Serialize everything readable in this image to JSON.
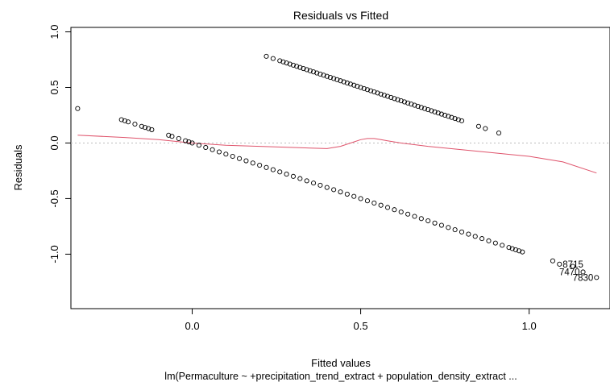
{
  "chart_data": {
    "type": "scatter",
    "title": "Residuals vs Fitted",
    "xlabel": "Fitted values",
    "ylabel": "Residuals",
    "subtitle": "lm(Permaculture ~ +precipitation_trend_extract + population_density_extract ...",
    "xlim": [
      -0.36,
      1.24
    ],
    "ylim": [
      -1.49,
      1.04
    ],
    "x_ticks": [
      0.0,
      0.5,
      1.0
    ],
    "x_tick_labels": [
      "0.0",
      "0.5",
      "1.0"
    ],
    "y_ticks": [
      -1.0,
      -0.5,
      0.0,
      0.5,
      1.0
    ],
    "y_tick_labels": [
      "-1.0",
      "-0.5",
      "0.0",
      "0.5",
      "1.0"
    ],
    "reference_line_y": 0,
    "grid": false,
    "point_color": "#000000",
    "smooth_color": "#DF536B",
    "reference_color": "#BEBEBE",
    "series": [
      {
        "kind": "points",
        "band": "upper",
        "x": [
          0.22,
          0.24,
          0.26,
          0.27,
          0.28,
          0.29,
          0.3,
          0.31,
          0.32,
          0.33,
          0.34,
          0.35,
          0.36,
          0.37,
          0.38,
          0.39,
          0.4,
          0.41,
          0.42,
          0.43,
          0.44,
          0.45,
          0.46,
          0.47,
          0.48,
          0.49,
          0.5,
          0.51,
          0.52,
          0.53,
          0.54,
          0.55,
          0.56,
          0.57,
          0.58,
          0.59,
          0.6,
          0.61,
          0.62,
          0.63,
          0.64,
          0.65,
          0.66,
          0.67,
          0.68,
          0.69,
          0.7,
          0.71,
          0.72,
          0.73,
          0.74,
          0.75,
          0.76,
          0.77,
          0.78,
          0.79,
          0.8,
          0.85,
          0.87,
          0.91
        ],
        "y": [
          0.78,
          0.76,
          0.74,
          0.73,
          0.72,
          0.71,
          0.7,
          0.69,
          0.68,
          0.67,
          0.66,
          0.65,
          0.64,
          0.63,
          0.62,
          0.61,
          0.6,
          0.59,
          0.58,
          0.57,
          0.56,
          0.55,
          0.54,
          0.53,
          0.52,
          0.51,
          0.5,
          0.49,
          0.48,
          0.47,
          0.46,
          0.45,
          0.44,
          0.43,
          0.42,
          0.41,
          0.4,
          0.39,
          0.38,
          0.37,
          0.36,
          0.35,
          0.34,
          0.33,
          0.32,
          0.31,
          0.3,
          0.29,
          0.28,
          0.27,
          0.26,
          0.25,
          0.24,
          0.23,
          0.22,
          0.21,
          0.2,
          0.15,
          0.13,
          0.09
        ]
      },
      {
        "kind": "points",
        "band": "lower",
        "x": [
          -0.34,
          -0.21,
          -0.2,
          -0.19,
          -0.17,
          -0.15,
          -0.14,
          -0.13,
          -0.12,
          -0.07,
          -0.06,
          -0.04,
          -0.02,
          -0.01,
          0.0,
          0.02,
          0.04,
          0.06,
          0.08,
          0.1,
          0.12,
          0.14,
          0.16,
          0.18,
          0.2,
          0.22,
          0.24,
          0.26,
          0.28,
          0.3,
          0.32,
          0.34,
          0.36,
          0.38,
          0.4,
          0.42,
          0.44,
          0.46,
          0.48,
          0.5,
          0.52,
          0.54,
          0.56,
          0.58,
          0.6,
          0.62,
          0.64,
          0.66,
          0.68,
          0.7,
          0.72,
          0.74,
          0.76,
          0.78,
          0.8,
          0.82,
          0.84,
          0.86,
          0.88,
          0.9,
          0.92,
          0.94,
          0.95,
          0.96,
          0.97,
          0.98,
          1.07,
          1.09,
          1.13,
          1.16,
          1.2
        ],
        "y": [
          0.31,
          0.21,
          0.2,
          0.19,
          0.17,
          0.15,
          0.14,
          0.13,
          0.12,
          0.07,
          0.06,
          0.04,
          0.02,
          0.01,
          0.0,
          -0.02,
          -0.04,
          -0.06,
          -0.08,
          -0.1,
          -0.12,
          -0.14,
          -0.16,
          -0.18,
          -0.2,
          -0.22,
          -0.24,
          -0.26,
          -0.28,
          -0.3,
          -0.32,
          -0.34,
          -0.36,
          -0.38,
          -0.4,
          -0.42,
          -0.44,
          -0.46,
          -0.48,
          -0.5,
          -0.52,
          -0.54,
          -0.56,
          -0.58,
          -0.6,
          -0.62,
          -0.64,
          -0.66,
          -0.68,
          -0.7,
          -0.72,
          -0.74,
          -0.76,
          -0.78,
          -0.8,
          -0.82,
          -0.84,
          -0.86,
          -0.88,
          -0.9,
          -0.92,
          -0.94,
          -0.95,
          -0.96,
          -0.97,
          -0.98,
          -1.06,
          -1.09,
          -1.11,
          -1.16,
          -1.21
        ]
      },
      {
        "kind": "smooth_line",
        "x": [
          -0.34,
          -0.2,
          -0.1,
          0.0,
          0.1,
          0.2,
          0.3,
          0.4,
          0.44,
          0.48,
          0.5,
          0.52,
          0.54,
          0.56,
          0.58,
          0.62,
          0.7,
          0.8,
          0.9,
          1.0,
          1.1,
          1.2
        ],
        "y": [
          0.07,
          0.05,
          0.03,
          0.0,
          -0.02,
          -0.03,
          -0.04,
          -0.05,
          -0.03,
          0.01,
          0.03,
          0.04,
          0.04,
          0.03,
          0.02,
          0.0,
          -0.03,
          -0.06,
          -0.09,
          -0.12,
          -0.17,
          -0.27
        ]
      }
    ],
    "annotations": [
      {
        "text": "8715",
        "x": 1.09,
        "y": -1.09,
        "side": "right"
      },
      {
        "text": "7470",
        "x": 1.16,
        "y": -1.16,
        "side": "left"
      },
      {
        "text": "7830",
        "x": 1.2,
        "y": -1.21,
        "side": "left"
      }
    ]
  }
}
